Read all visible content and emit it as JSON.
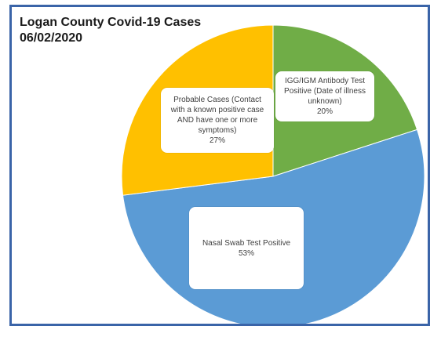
{
  "chart_data": {
    "type": "pie",
    "title": "Logan County Covid-19 Cases",
    "subtitle": "06/02/2020",
    "slices": [
      {
        "label": "IGG/IGM Antibody Test Positive (Date of illness unknown)",
        "value": 20,
        "value_label": "20%",
        "color": "#70ad47"
      },
      {
        "label": "Nasal Swab Test Positive",
        "value": 53,
        "value_label": "53%",
        "color": "#5b9bd5"
      },
      {
        "label": "Probable Cases (Contact with a known positive case AND have one or more symptoms)",
        "value": 27,
        "value_label": "27%",
        "color": "#ffc000"
      }
    ],
    "legend": "none",
    "data_labels": "callout-boxes"
  }
}
